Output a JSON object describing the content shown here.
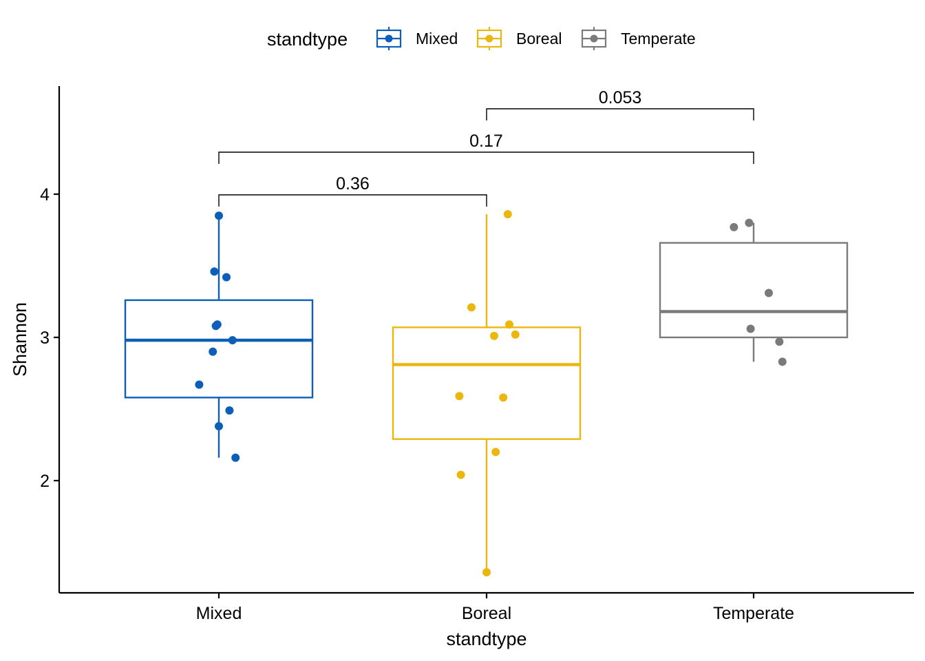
{
  "chart_data": {
    "type": "box",
    "xlabel": "standtype",
    "ylabel": "Shannon",
    "ylim": [
      1.25,
      4.75
    ],
    "yticks": [
      2,
      3,
      4
    ],
    "categories": [
      "Mixed",
      "Boreal",
      "Temperate"
    ],
    "legend": {
      "title": "standtype",
      "position": "top"
    },
    "series": [
      {
        "name": "Mixed",
        "color": "#0c5fb8",
        "box": {
          "lower_whisker": 2.16,
          "q1": 2.58,
          "median": 2.98,
          "q3": 3.26,
          "upper_whisker": 3.85
        },
        "points": [
          {
            "jitter": 0.0,
            "y": 3.85
          },
          {
            "jitter": -0.03,
            "y": 3.46
          },
          {
            "jitter": 0.05,
            "y": 3.42
          },
          {
            "jitter": -0.02,
            "y": 3.08
          },
          {
            "jitter": -0.01,
            "y": 3.09
          },
          {
            "jitter": 0.09,
            "y": 2.98
          },
          {
            "jitter": -0.04,
            "y": 2.9
          },
          {
            "jitter": -0.13,
            "y": 2.67
          },
          {
            "jitter": 0.07,
            "y": 2.49
          },
          {
            "jitter": 0.0,
            "y": 2.38
          },
          {
            "jitter": 0.11,
            "y": 2.16
          }
        ]
      },
      {
        "name": "Boreal",
        "color": "#ebb70f",
        "box": {
          "lower_whisker": 1.36,
          "q1": 2.29,
          "median": 2.81,
          "q3": 3.07,
          "upper_whisker": 3.86
        },
        "points": [
          {
            "jitter": 0.14,
            "y": 3.86
          },
          {
            "jitter": -0.1,
            "y": 3.21
          },
          {
            "jitter": 0.15,
            "y": 3.09
          },
          {
            "jitter": 0.05,
            "y": 3.01
          },
          {
            "jitter": 0.19,
            "y": 3.02
          },
          {
            "jitter": -0.18,
            "y": 2.59
          },
          {
            "jitter": 0.11,
            "y": 2.58
          },
          {
            "jitter": 0.06,
            "y": 2.2
          },
          {
            "jitter": -0.17,
            "y": 2.04
          },
          {
            "jitter": 0.0,
            "y": 1.36
          }
        ]
      },
      {
        "name": "Temperate",
        "color": "#7a7a7a",
        "box": {
          "lower_whisker": 2.83,
          "q1": 3.0,
          "median": 3.18,
          "q3": 3.66,
          "upper_whisker": 3.8
        },
        "points": [
          {
            "jitter": -0.13,
            "y": 3.77
          },
          {
            "jitter": -0.03,
            "y": 3.8
          },
          {
            "jitter": 0.1,
            "y": 3.31
          },
          {
            "jitter": -0.02,
            "y": 3.06
          },
          {
            "jitter": 0.17,
            "y": 2.97
          },
          {
            "jitter": 0.19,
            "y": 2.83
          }
        ]
      }
    ],
    "comparisons": [
      {
        "from": "Mixed",
        "to": "Boreal",
        "label": "0.36",
        "level": 1
      },
      {
        "from": "Mixed",
        "to": "Temperate",
        "label": "0.17",
        "level": 2
      },
      {
        "from": "Boreal",
        "to": "Temperate",
        "label": "0.053",
        "level": 3
      }
    ]
  }
}
